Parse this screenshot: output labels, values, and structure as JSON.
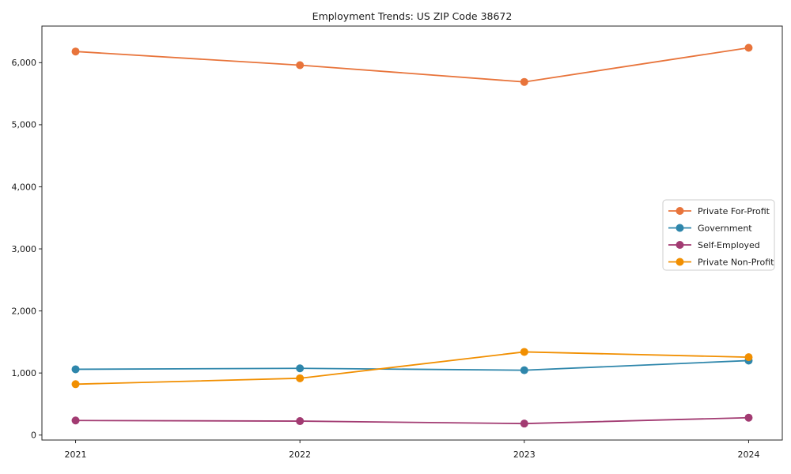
{
  "figure": {
    "background": "#ffffff"
  },
  "chart_data": {
    "type": "line",
    "title": "Employment Trends: US ZIP Code 38672",
    "xlabel": "",
    "ylabel": "",
    "x": [
      2021,
      2022,
      2023,
      2024
    ],
    "xtick_labels": [
      "2021",
      "2022",
      "2023",
      "2024"
    ],
    "yticks": [
      0,
      1000,
      2000,
      3000,
      4000,
      5000,
      6000
    ],
    "ytick_labels": [
      "0",
      "1,000",
      "2,000",
      "3,000",
      "4,000",
      "5,000",
      "6,000"
    ],
    "xlim": [
      2020.85,
      2024.15
    ],
    "ylim": [
      -80,
      6590
    ],
    "grid": false,
    "marker": "circle",
    "axis_color": "#262626",
    "text_color": "#1a1a1a",
    "series": [
      {
        "name": "Private For-Profit",
        "color": "#E8743B",
        "values": [
          6180,
          5960,
          5690,
          6240
        ]
      },
      {
        "name": "Government",
        "color": "#2E86AB",
        "values": [
          1060,
          1075,
          1045,
          1200
        ]
      },
      {
        "name": "Self-Employed",
        "color": "#A23B72",
        "values": [
          235,
          225,
          185,
          280
        ]
      },
      {
        "name": "Private Non-Profit",
        "color": "#F18F01",
        "values": [
          820,
          915,
          1340,
          1255
        ]
      }
    ],
    "legend": {
      "position": "right-middle",
      "background": "#ffffff",
      "border_color": "#cccccc",
      "entries": [
        "Private For-Profit",
        "Government",
        "Self-Employed",
        "Private Non-Profit"
      ]
    }
  }
}
